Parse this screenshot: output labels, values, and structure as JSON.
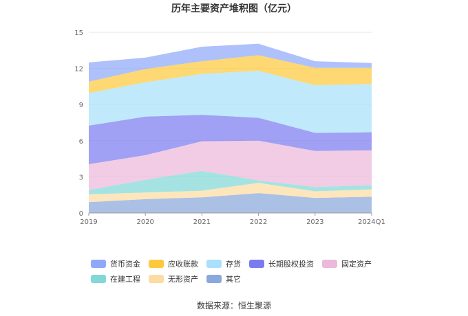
{
  "title": "历年主要资产堆积图（亿元）",
  "source": "数据来源：恒生聚源",
  "chart_data": {
    "type": "area",
    "stacked": true,
    "x": [
      "2019",
      "2020",
      "2021",
      "2022",
      "2023",
      "2024Q1"
    ],
    "ylim": [
      0,
      15
    ],
    "yticks": [
      "0",
      "3",
      "6",
      "9",
      "12",
      "15"
    ],
    "grid": true,
    "legend_position": "bottom",
    "series": [
      {
        "name": "其它",
        "color": "#8aa8db",
        "values": [
          0.9,
          1.15,
          1.3,
          1.65,
          1.25,
          1.35
        ]
      },
      {
        "name": "无形资产",
        "color": "#fddca2",
        "values": [
          0.65,
          0.55,
          0.55,
          0.85,
          0.55,
          0.6
        ]
      },
      {
        "name": "在建工程",
        "color": "#82d8d8",
        "values": [
          0.35,
          1.05,
          1.65,
          0.2,
          0.35,
          0.35
        ]
      },
      {
        "name": "固定资产",
        "color": "#ebb9da",
        "values": [
          2.15,
          2.05,
          2.45,
          3.3,
          3.0,
          2.9
        ]
      },
      {
        "name": "长期股权投资",
        "color": "#7b7bf0",
        "values": [
          3.2,
          3.2,
          2.2,
          1.9,
          1.5,
          1.5
        ]
      },
      {
        "name": "存货",
        "color": "#a9e0fb",
        "values": [
          2.7,
          2.85,
          3.4,
          3.9,
          3.95,
          4.0
        ]
      },
      {
        "name": "应收账款",
        "color": "#fdc93c",
        "values": [
          0.95,
          1.1,
          1.05,
          1.3,
          1.45,
          1.35
        ]
      },
      {
        "name": "货币资金",
        "color": "#8fa9f9",
        "values": [
          1.6,
          0.95,
          1.2,
          0.95,
          0.55,
          0.4
        ]
      }
    ],
    "legend_order": [
      "货币资金",
      "应收账款",
      "存货",
      "长期股权投资",
      "固定资产",
      "在建工程",
      "无形资产",
      "其它"
    ]
  }
}
